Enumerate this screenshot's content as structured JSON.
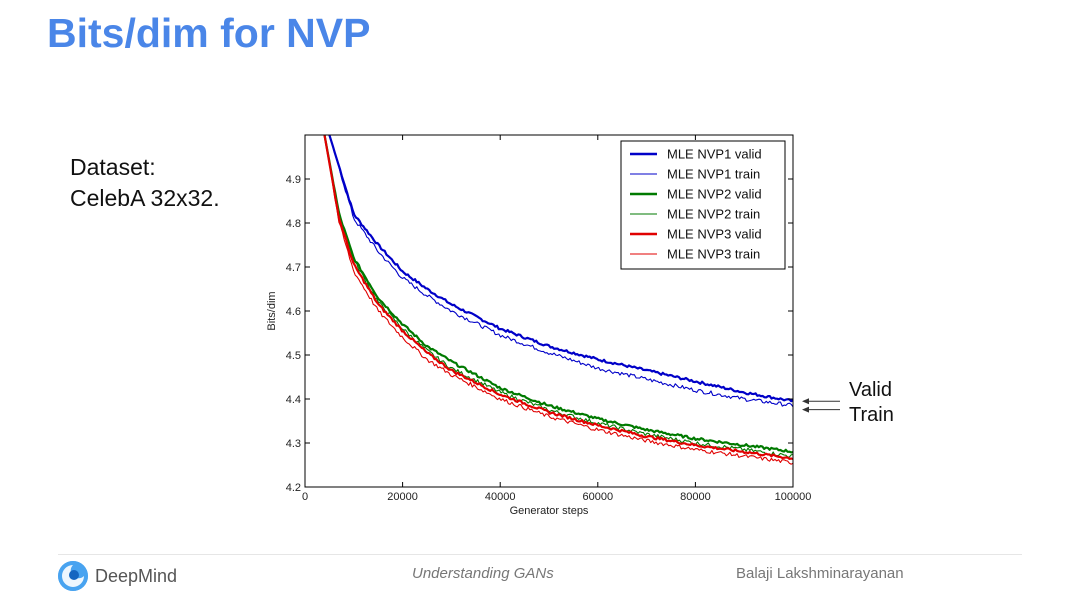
{
  "slide": {
    "title": "Bits/dim for NVP",
    "dataset_line1": "Dataset:",
    "dataset_line2": "CelebA 32x32.",
    "annotation_valid": "Valid",
    "annotation_train": "Train"
  },
  "footer": {
    "brand": "DeepMind",
    "talk": "Understanding GANs",
    "author": "Balaji Lakshminarayanan"
  },
  "colors": {
    "title": "#4a86e8",
    "nvp1": "#0000c8",
    "nvp2": "#007a00",
    "nvp3": "#e00000",
    "logo": "#1e88e5"
  },
  "chart_data": {
    "type": "line",
    "xlabel": "Generator steps",
    "ylabel": "Bits/dim",
    "xlim": [
      0,
      100000
    ],
    "ylim": [
      4.2,
      5.0
    ],
    "xticks": [
      0,
      20000,
      40000,
      60000,
      80000,
      100000
    ],
    "yticks": [
      4.2,
      4.3,
      4.4,
      4.5,
      4.6,
      4.7,
      4.8,
      4.9
    ],
    "legend_position": "top-right",
    "series": [
      {
        "name": "MLE NVP1 valid",
        "color": "#0000c8",
        "width": "thick",
        "x": [
          5000,
          10000,
          15000,
          20000,
          25000,
          30000,
          40000,
          50000,
          60000,
          70000,
          80000,
          90000,
          100000
        ],
        "y": [
          5.0,
          4.82,
          4.75,
          4.69,
          4.65,
          4.615,
          4.56,
          4.52,
          4.49,
          4.465,
          4.44,
          4.415,
          4.395
        ]
      },
      {
        "name": "MLE NVP1 train",
        "color": "#0000c8",
        "width": "thin",
        "x": [
          5000,
          10000,
          15000,
          20000,
          25000,
          30000,
          40000,
          50000,
          60000,
          70000,
          80000,
          90000,
          100000
        ],
        "y": [
          5.0,
          4.81,
          4.735,
          4.675,
          4.635,
          4.6,
          4.545,
          4.505,
          4.47,
          4.445,
          4.42,
          4.4,
          4.385
        ]
      },
      {
        "name": "MLE NVP2 valid",
        "color": "#007a00",
        "width": "thick",
        "x": [
          4000,
          7000,
          10000,
          15000,
          20000,
          25000,
          30000,
          40000,
          50000,
          60000,
          70000,
          80000,
          90000,
          100000
        ],
        "y": [
          5.0,
          4.82,
          4.72,
          4.63,
          4.57,
          4.52,
          4.485,
          4.425,
          4.385,
          4.355,
          4.33,
          4.31,
          4.295,
          4.28
        ]
      },
      {
        "name": "MLE NVP2 train",
        "color": "#007a00",
        "width": "thin",
        "x": [
          4000,
          7000,
          10000,
          15000,
          20000,
          25000,
          30000,
          40000,
          50000,
          60000,
          70000,
          80000,
          90000,
          100000
        ],
        "y": [
          5.0,
          4.815,
          4.715,
          4.62,
          4.56,
          4.51,
          4.47,
          4.415,
          4.375,
          4.345,
          4.32,
          4.3,
          4.285,
          4.27
        ]
      },
      {
        "name": "MLE NVP3 valid",
        "color": "#e00000",
        "width": "thick",
        "x": [
          4000,
          7000,
          10000,
          15000,
          20000,
          25000,
          30000,
          40000,
          50000,
          60000,
          70000,
          80000,
          90000,
          100000
        ],
        "y": [
          5.0,
          4.81,
          4.705,
          4.615,
          4.555,
          4.505,
          4.465,
          4.41,
          4.37,
          4.34,
          4.315,
          4.295,
          4.28,
          4.265
        ]
      },
      {
        "name": "MLE NVP3 train",
        "color": "#e00000",
        "width": "thin",
        "x": [
          4000,
          7000,
          10000,
          15000,
          20000,
          25000,
          30000,
          40000,
          50000,
          60000,
          70000,
          80000,
          90000,
          100000
        ],
        "y": [
          5.0,
          4.8,
          4.69,
          4.6,
          4.54,
          4.49,
          4.455,
          4.4,
          4.36,
          4.33,
          4.305,
          4.285,
          4.27,
          4.255
        ]
      }
    ]
  }
}
